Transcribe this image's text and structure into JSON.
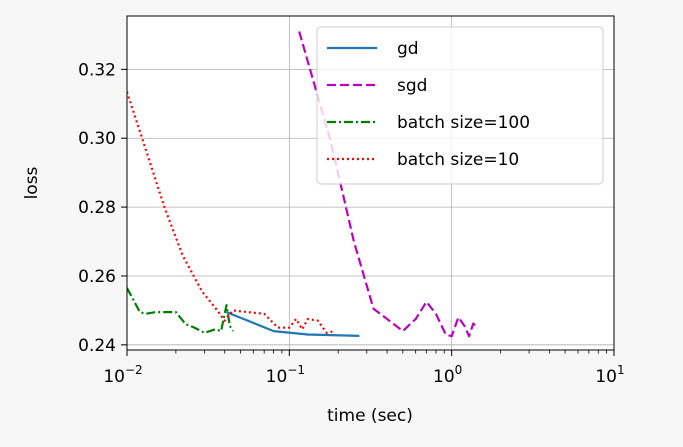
{
  "chart_data": {
    "type": "line",
    "xlabel": "time (sec)",
    "ylabel": "loss",
    "xscale": "log",
    "xlim": [
      0.01,
      10
    ],
    "ylim": [
      0.2385,
      0.3355
    ],
    "grid": true,
    "legend_position": "top-right",
    "x_ticks": [
      {
        "value": 0.01,
        "base": "10",
        "exp": "−2"
      },
      {
        "value": 0.1,
        "base": "10",
        "exp": "−1"
      },
      {
        "value": 1,
        "base": "10",
        "exp": "0"
      },
      {
        "value": 10,
        "base": "10",
        "exp": "1"
      }
    ],
    "y_ticks": [
      {
        "value": 0.24,
        "label": "0.24"
      },
      {
        "value": 0.26,
        "label": "0.26"
      },
      {
        "value": 0.28,
        "label": "0.28"
      },
      {
        "value": 0.3,
        "label": "0.30"
      },
      {
        "value": 0.32,
        "label": "0.32"
      }
    ],
    "series": [
      {
        "name": "gd",
        "color": "#1f77b4",
        "dash": "solid",
        "points": [
          [
            0.041,
            0.2495
          ],
          [
            0.08,
            0.244
          ],
          [
            0.13,
            0.243
          ],
          [
            0.27,
            0.2426
          ]
        ]
      },
      {
        "name": "sgd",
        "color": "#bf00bf",
        "dash": "dashed",
        "points": [
          [
            0.115,
            0.331
          ],
          [
            0.18,
            0.299
          ],
          [
            0.25,
            0.27
          ],
          [
            0.33,
            0.2505
          ],
          [
            0.4,
            0.2475
          ],
          [
            0.5,
            0.244
          ],
          [
            0.6,
            0.2475
          ],
          [
            0.7,
            0.2525
          ],
          [
            0.8,
            0.249
          ],
          [
            0.92,
            0.243
          ],
          [
            1.0,
            0.2425
          ],
          [
            1.1,
            0.248
          ],
          [
            1.2,
            0.2455
          ],
          [
            1.28,
            0.2425
          ],
          [
            1.36,
            0.2462
          ],
          [
            1.45,
            0.2448
          ]
        ]
      },
      {
        "name": "batch size=100",
        "color": "#008000",
        "dash": "dashdot",
        "points": [
          [
            0.01,
            0.2565
          ],
          [
            0.012,
            0.2495
          ],
          [
            0.013,
            0.249
          ],
          [
            0.015,
            0.2495
          ],
          [
            0.02,
            0.2495
          ],
          [
            0.023,
            0.246
          ],
          [
            0.026,
            0.245
          ],
          [
            0.03,
            0.2435
          ],
          [
            0.035,
            0.2445
          ],
          [
            0.038,
            0.244
          ],
          [
            0.041,
            0.2515
          ],
          [
            0.043,
            0.2455
          ],
          [
            0.045,
            0.244
          ]
        ]
      },
      {
        "name": "batch size=10",
        "color": "#ff0000",
        "dash": "dotted",
        "points": [
          [
            0.01,
            0.3135
          ],
          [
            0.013,
            0.297
          ],
          [
            0.017,
            0.28
          ],
          [
            0.022,
            0.266
          ],
          [
            0.029,
            0.2555
          ],
          [
            0.036,
            0.25
          ],
          [
            0.04,
            0.247
          ],
          [
            0.045,
            0.25
          ],
          [
            0.055,
            0.2495
          ],
          [
            0.07,
            0.249
          ],
          [
            0.085,
            0.245
          ],
          [
            0.1,
            0.245
          ],
          [
            0.11,
            0.2475
          ],
          [
            0.12,
            0.2445
          ],
          [
            0.13,
            0.2475
          ],
          [
            0.15,
            0.247
          ],
          [
            0.17,
            0.2435
          ],
          [
            0.19,
            0.244
          ]
        ]
      }
    ]
  }
}
